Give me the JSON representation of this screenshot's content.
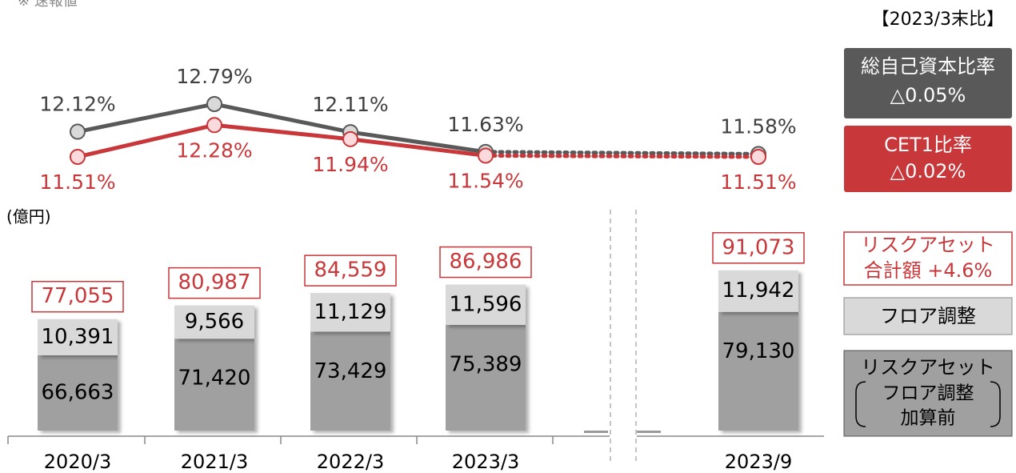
{
  "chart_data": {
    "type": "bar-line",
    "note": "※ 速報値",
    "unit": "(億円)",
    "comparison_title": "【2023/3末比】",
    "categories": [
      "2020/3",
      "2021/3",
      "2022/3",
      "2023/3",
      "2023/9"
    ],
    "ylim": [
      45000,
      100000
    ],
    "series": [
      {
        "name": [
          "リスクアセット",
          "フロア調整",
          "加算前"
        ],
        "color": "#a0a0a0",
        "values": [
          66663,
          71420,
          73429,
          75389,
          79130
        ],
        "value_labels": [
          "66,663",
          "71,420",
          "73,429",
          "75,389",
          "79,130"
        ]
      },
      {
        "name": [
          "フロア調整"
        ],
        "color": "#d9d9d9",
        "values": [
          10391,
          9566,
          11129,
          11596,
          11942
        ],
        "value_labels": [
          "10,391",
          "9,566",
          "11,129",
          "11,596",
          "11,942"
        ]
      }
    ],
    "totals": {
      "name": [
        "リスクアセット",
        "合計額 +4.6%"
      ],
      "color": "#c8373a",
      "values": [
        77055,
        80987,
        84559,
        86986,
        91073
      ],
      "value_labels": [
        "77,055",
        "80,987",
        "84,559",
        "86,986",
        "91,073"
      ]
    },
    "lines": [
      {
        "name": "総自己資本比率",
        "change": "△0.05%",
        "color": "#595959",
        "marker_fill": "#d9d9d9",
        "values": [
          12.12,
          12.79,
          12.11,
          11.63,
          11.58
        ],
        "value_labels": [
          "12.12%",
          "12.79%",
          "12.11%",
          "11.63%",
          "11.58%"
        ]
      },
      {
        "name": "CET1比率",
        "change": "△0.02%",
        "color": "#c8373a",
        "marker_fill": "#fadadd",
        "values": [
          11.51,
          12.28,
          11.94,
          11.54,
          11.51
        ],
        "value_labels": [
          "11.51%",
          "12.28%",
          "11.94%",
          "11.54%",
          "11.51%"
        ]
      }
    ]
  }
}
